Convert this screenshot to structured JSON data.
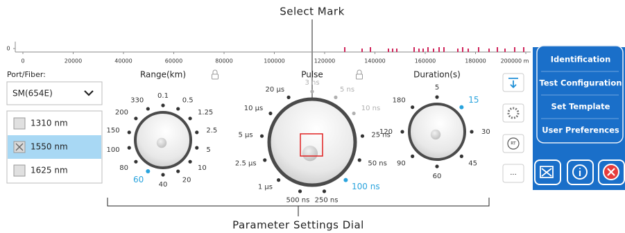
{
  "annotations": {
    "select_mark": "Select Mark",
    "parameter_settings_dial": "Parameter Settings Dial"
  },
  "trace": {
    "xlim": [
      0,
      200000
    ],
    "xticks": [
      0,
      20000,
      40000,
      60000,
      80000,
      100000,
      120000,
      140000,
      160000,
      180000,
      {
        "value": 200000,
        "label": "200000 m"
      }
    ],
    "yticks": [
      0
    ]
  },
  "port_fiber": {
    "label": "Port/Fiber:",
    "selected": "SM(654E)"
  },
  "wavelengths": [
    {
      "label": "1310 nm",
      "checked": false
    },
    {
      "label": "1550 nm",
      "checked": true
    },
    {
      "label": "1625 nm",
      "checked": false
    }
  ],
  "dials": [
    {
      "title": "Range(km)",
      "locked": true,
      "options": [
        "0.1",
        "0.5",
        "1.25",
        "2.5",
        "5",
        "10",
        "20",
        "40",
        "60",
        "80",
        "100",
        "150",
        "200",
        "330"
      ],
      "selected": 8,
      "disabled": []
    },
    {
      "title": "Pulse",
      "locked": true,
      "options": [
        "3 ns",
        "5 ns",
        "10 ns",
        "25 ns",
        "50 ns",
        "100 ns",
        "250 ns",
        "500 ns",
        "1 µs",
        "2.5 µs",
        "5 µs",
        "10 µs",
        "20 µs"
      ],
      "selected": 5,
      "disabled": [
        0,
        1,
        2
      ]
    },
    {
      "title": "Duration(s)",
      "locked": false,
      "options": [
        "5",
        "15",
        "30",
        "45",
        "60",
        "90",
        "120",
        "180"
      ],
      "selected": 1,
      "disabled": []
    }
  ],
  "menu": [
    "Identification",
    "Test Configuration",
    "Set Template",
    "User Preferences"
  ],
  "side_buttons": {
    "rt": "RT",
    "more": "..."
  }
}
